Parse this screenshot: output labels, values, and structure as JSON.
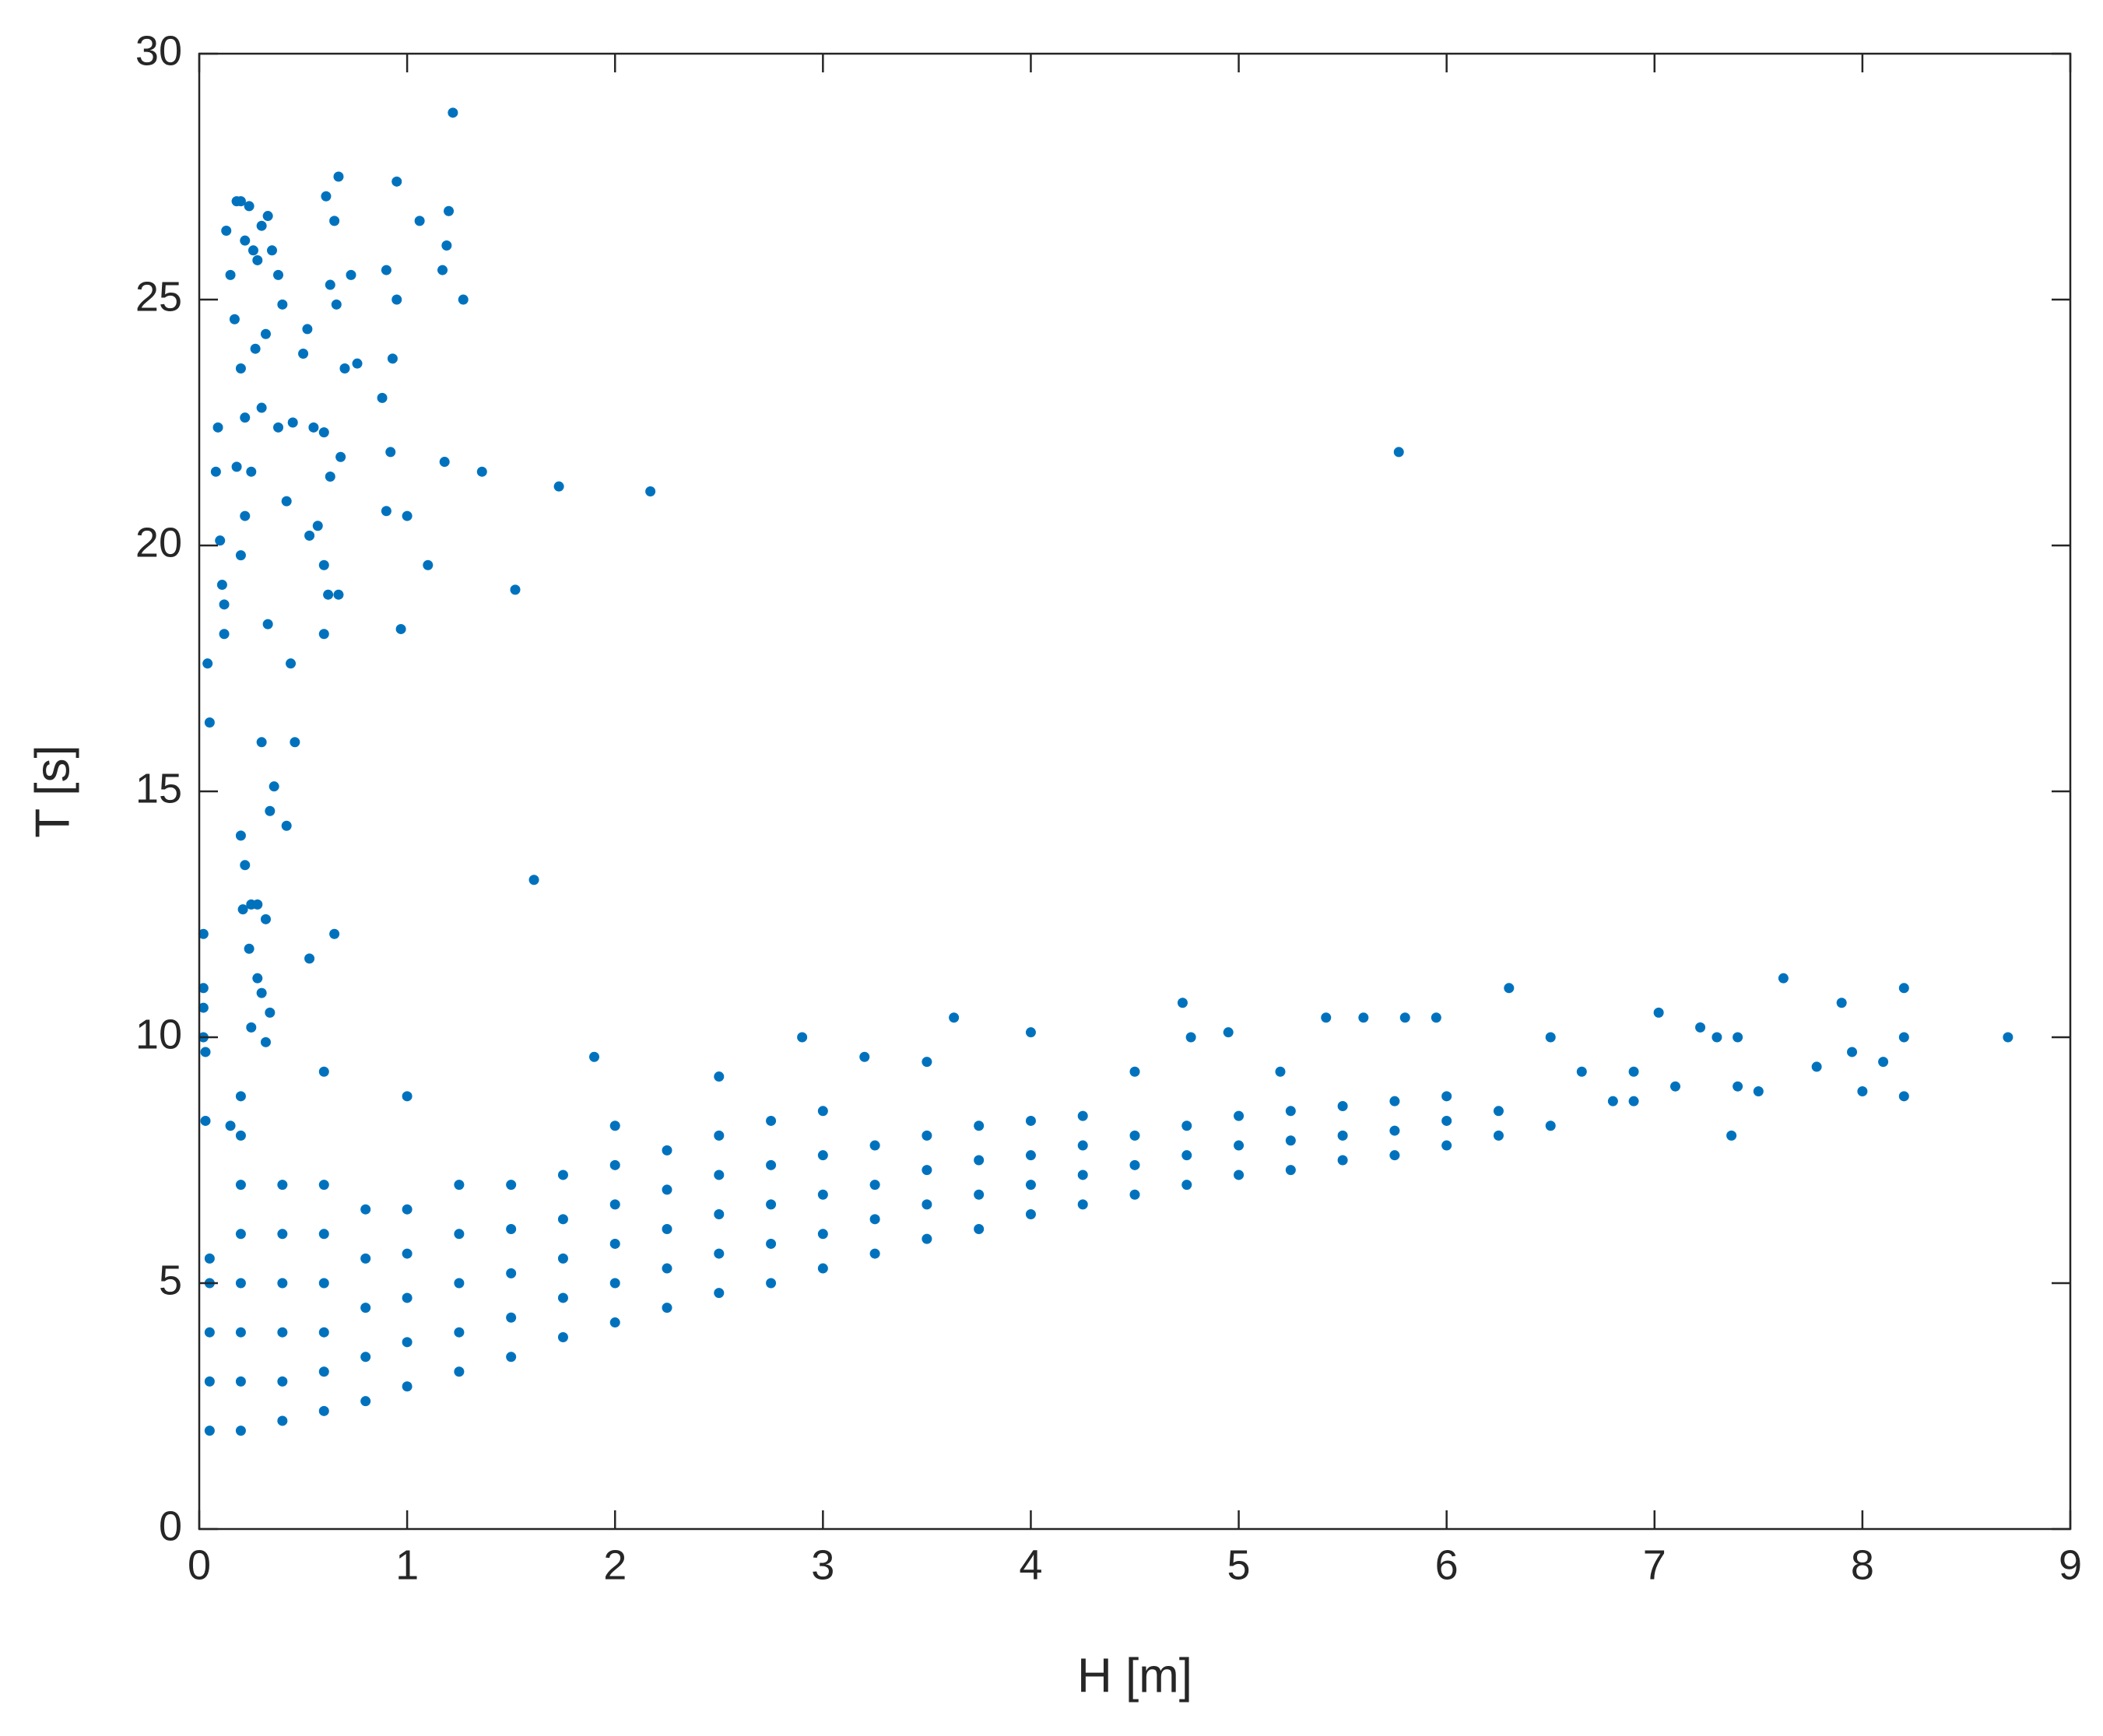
{
  "chart_data": {
    "type": "scatter",
    "xlabel": "H [m]",
    "ylabel": "T [s]",
    "xlim": [
      0,
      9
    ],
    "ylim": [
      0,
      30
    ],
    "xticks": [
      0,
      1,
      2,
      3,
      4,
      5,
      6,
      7,
      8,
      9
    ],
    "yticks": [
      0,
      5,
      10,
      15,
      20,
      25,
      30
    ],
    "grid": false,
    "box": true,
    "series": [
      {
        "color": "#0072bd",
        "x": [
          0.02,
          0.02,
          0.02,
          0.02,
          0.03,
          0.03,
          0.04,
          0.05,
          0.08,
          0.09,
          0.1,
          0.11,
          0.12,
          0.12,
          0.13,
          0.15,
          0.17,
          0.18,
          0.2,
          0.22,
          0.24,
          0.26,
          0.28,
          0.3,
          0.33,
          0.35,
          0.2,
          0.22,
          0.25,
          0.18,
          0.22,
          0.2,
          0.27,
          0.3,
          0.32,
          0.38,
          0.4,
          0.45,
          0.38,
          0.33,
          0.3,
          0.36,
          0.34,
          0.42,
          0.46,
          0.44,
          0.42,
          0.5,
          0.52,
          0.55,
          0.53,
          0.57,
          0.6,
          0.62,
          0.6,
          0.61,
          0.63,
          0.65,
          0.67,
          0.66,
          0.7,
          0.68,
          0.73,
          0.76,
          0.6,
          0.67,
          0.63,
          0.9,
          0.88,
          0.93,
          0.95,
          0.95,
          0.9,
          0.92,
          0.97,
          1.0,
          1.06,
          1.1,
          1.17,
          1.19,
          1.2,
          1.22,
          1.27,
          1.18,
          1.36,
          1.52,
          1.61,
          1.73,
          2.17,
          5.77,
          0.2,
          0.22,
          0.25,
          0.28,
          0.21,
          0.32,
          0.53,
          0.65,
          0.24,
          0.28,
          0.3,
          0.34,
          0.25,
          0.32,
          1.9,
          2.9,
          3.63,
          4.0,
          4.73,
          4.77,
          4.95,
          5.42,
          5.6,
          5.8,
          5.95,
          6.3,
          6.5,
          7.02,
          7.22,
          7.3,
          7.4,
          7.62,
          7.9,
          7.95,
          8.1,
          8.2,
          8.2,
          8.2,
          8.7,
          7.78,
          7.37,
          8.0,
          7.5,
          7.1,
          6.9,
          6.65,
          6.8,
          6.5,
          6.9,
          7.4,
          0.05,
          0.05,
          0.05,
          0.05,
          0.05,
          0.2,
          0.2,
          0.2,
          0.2,
          0.2,
          0.2,
          0.2,
          0.4,
          0.4,
          0.4,
          0.4,
          0.4,
          0.4,
          0.6,
          0.6,
          0.6,
          0.6,
          0.6,
          0.6,
          0.8,
          0.8,
          0.8,
          0.8,
          0.8,
          1.0,
          1.0,
          1.0,
          1.0,
          1.0,
          1.25,
          1.25,
          1.25,
          1.25,
          1.25,
          1.5,
          1.5,
          1.5,
          1.5,
          1.5,
          1.75,
          1.75,
          1.75,
          1.75,
          1.75,
          2.0,
          2.0,
          2.0,
          2.0,
          2.0,
          2.0,
          2.25,
          2.25,
          2.25,
          2.25,
          2.25,
          2.5,
          2.5,
          2.5,
          2.5,
          2.5,
          2.75,
          2.75,
          2.75,
          2.75,
          2.75,
          3.0,
          3.0,
          3.0,
          3.0,
          3.0,
          3.25,
          3.25,
          3.25,
          3.25,
          3.5,
          3.5,
          3.5,
          3.5,
          3.75,
          3.75,
          3.75,
          3.75,
          4.0,
          4.0,
          4.0,
          4.0,
          4.25,
          4.25,
          4.25,
          4.25,
          4.5,
          4.5,
          4.5,
          4.75,
          4.75,
          4.75,
          5.0,
          5.0,
          5.0,
          5.25,
          5.25,
          5.25,
          5.5,
          5.5,
          5.5,
          5.75,
          5.75,
          5.75,
          6.0,
          6.0,
          6.0,
          6.25,
          6.25,
          3.2,
          3.5,
          2.5,
          4.5,
          5.2,
          1.0,
          0.6,
          0.2,
          0.15
        ],
        "values": [
          12.1,
          11,
          10.6,
          10,
          9.7,
          8.3,
          17.6,
          16.4,
          21.5,
          22.4,
          20.1,
          19.2,
          18.8,
          18.2,
          26.4,
          25.5,
          24.6,
          27,
          27,
          26.2,
          26.9,
          26,
          25.8,
          26.5,
          26.7,
          26,
          23.6,
          22.6,
          21.5,
          21.6,
          20.6,
          19.8,
          24,
          22.8,
          24.3,
          22.4,
          24.9,
          22.5,
          25.5,
          18.4,
          16,
          15.1,
          14.6,
          14.3,
          16,
          17.6,
          20.9,
          23.9,
          24.4,
          22.4,
          20.2,
          20.4,
          18.2,
          19,
          22.3,
          27.1,
          25.3,
          26.6,
          27.5,
          24.9,
          23.6,
          21.8,
          25.5,
          23.7,
          19.6,
          19,
          21.4,
          25.6,
          23,
          23.8,
          27.4,
          25,
          20.7,
          21.9,
          18.3,
          20.6,
          26.6,
          19.6,
          25.6,
          26.1,
          26.8,
          28.8,
          25,
          21.7,
          21.5,
          19.1,
          13.2,
          21.2,
          21.1,
          21.9,
          14.1,
          13.5,
          12.7,
          12.7,
          12.6,
          12.4,
          11.6,
          12.1,
          11.8,
          11.2,
          10.9,
          10.5,
          10.2,
          9.9,
          9.6,
          10,
          10.4,
          10.1,
          10.7,
          10,
          10.1,
          10.4,
          10.4,
          10.4,
          10.4,
          11,
          10,
          10.5,
          10.2,
          10,
          10,
          11.2,
          10.7,
          9.7,
          9.5,
          11,
          10,
          8.8,
          10,
          9.4,
          8,
          8.9,
          8.9,
          9,
          9.3,
          9.3,
          8.7,
          8.2,
          8.7,
          9,
          2,
          3,
          4,
          5,
          5.5,
          2,
          3,
          4,
          5,
          6,
          7,
          8,
          2.2,
          3,
          4,
          5,
          6,
          7,
          2.4,
          3.2,
          4,
          5,
          6,
          7,
          2.6,
          3.5,
          4.5,
          5.5,
          6.5,
          2.9,
          3.8,
          4.7,
          5.6,
          6.5,
          3.2,
          4,
          5,
          6,
          7,
          3.5,
          4.3,
          5.2,
          6.1,
          7,
          3.9,
          4.7,
          5.5,
          6.3,
          7.2,
          4.2,
          5,
          5.8,
          6.6,
          7.4,
          8.2,
          4.5,
          5.3,
          6.1,
          6.9,
          7.7,
          4.8,
          5.6,
          6.4,
          7.2,
          8,
          5.0,
          5.8,
          6.6,
          7.4,
          8.3,
          5.3,
          6,
          6.8,
          7.6,
          8.5,
          5.6,
          6.3,
          7,
          7.8,
          5.9,
          6.6,
          7.3,
          8,
          6.1,
          6.8,
          7.5,
          8.2,
          6.4,
          7,
          7.6,
          8.3,
          6.6,
          7.2,
          7.8,
          8.4,
          6.8,
          7.4,
          8,
          7,
          7.6,
          8.2,
          7.2,
          7.8,
          8.4,
          7.3,
          7.9,
          8.5,
          7.5,
          8,
          8.6,
          7.6,
          8.1,
          8.7,
          7.8,
          8.3,
          8.8,
          8,
          8.5,
          9.6,
          9.5,
          9.2,
          9.3,
          9.3,
          8.8,
          9.3,
          8.8,
          8.2
        ]
      }
    ]
  }
}
